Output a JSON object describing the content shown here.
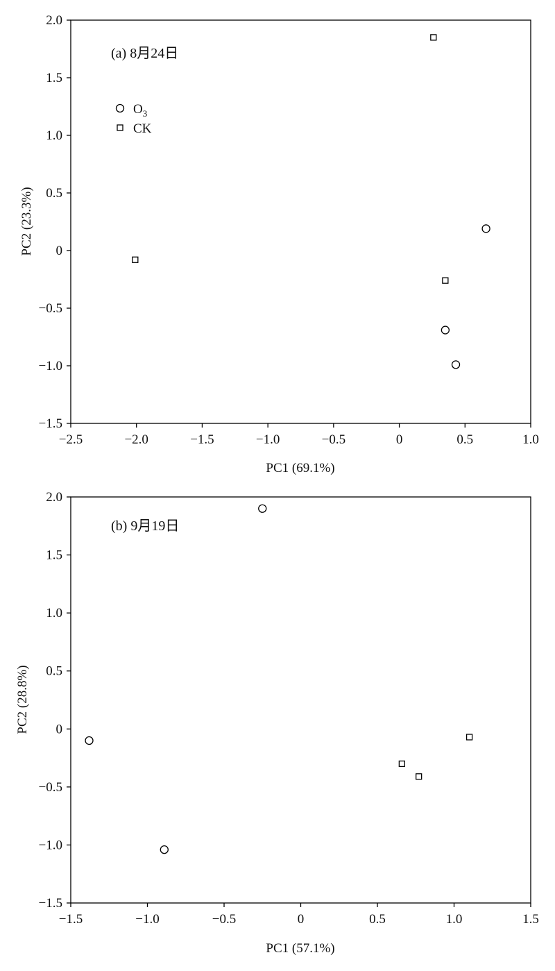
{
  "chart_data": [
    {
      "type": "scatter",
      "title": "(a) 8月24日",
      "xlabel": "PC1 (69.1%)",
      "ylabel": "PC2 (23.3%)",
      "xlim": [
        -2.5,
        1.0
      ],
      "ylim": [
        -1.5,
        2.0
      ],
      "xticks": [
        "−2.5",
        "−2.0",
        "−1.5",
        "−1.0",
        "−0.5",
        "0",
        "0.5",
        "1.0"
      ],
      "yticks": [
        "2.0",
        "1.5",
        "1.0",
        "0.5",
        "0",
        "−0.5",
        "−1.0",
        "−1.5"
      ],
      "grid": false,
      "legend_position": "upper-left",
      "series": [
        {
          "name": "O",
          "name_subscript": "3",
          "marker": "circle",
          "points": [
            {
              "x": 0.66,
              "y": 0.19
            },
            {
              "x": 0.35,
              "y": -0.69
            },
            {
              "x": 0.43,
              "y": -0.99
            }
          ]
        },
        {
          "name": "CK",
          "marker": "square",
          "points": [
            {
              "x": 0.26,
              "y": 1.85
            },
            {
              "x": 0.35,
              "y": -0.26
            },
            {
              "x": -2.01,
              "y": -0.08
            }
          ]
        }
      ]
    },
    {
      "type": "scatter",
      "title": "(b) 9月19日",
      "xlabel": "PC1 (57.1%)",
      "ylabel": "PC2 (28.8%)",
      "xlim": [
        -1.5,
        1.5
      ],
      "ylim": [
        -1.5,
        2.0
      ],
      "xticks": [
        "−1.5",
        "−1.0",
        "−0.5",
        "0",
        "0.5",
        "1.0",
        "1.5"
      ],
      "yticks": [
        "2.0",
        "1.5",
        "1.0",
        "0.5",
        "0",
        "−0.5",
        "−1.0",
        "−1.5"
      ],
      "grid": false,
      "legend_position": "none",
      "series": [
        {
          "name": "O3",
          "marker": "circle",
          "points": [
            {
              "x": -0.25,
              "y": 1.9
            },
            {
              "x": -1.38,
              "y": -0.1
            },
            {
              "x": -0.89,
              "y": -1.04
            }
          ]
        },
        {
          "name": "CK",
          "marker": "square",
          "points": [
            {
              "x": 0.66,
              "y": -0.3
            },
            {
              "x": 0.77,
              "y": -0.41
            },
            {
              "x": 1.1,
              "y": -0.07
            }
          ]
        }
      ]
    }
  ]
}
